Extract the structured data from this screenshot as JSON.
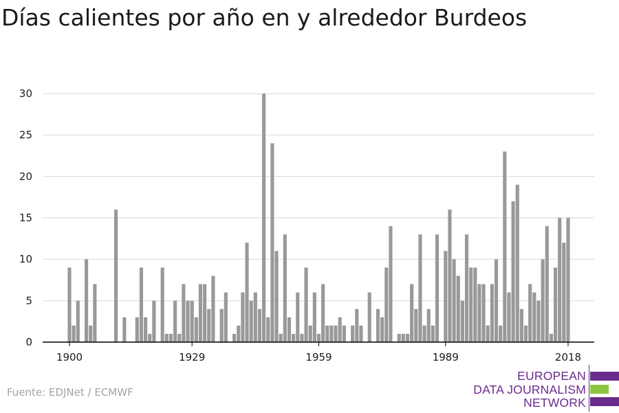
{
  "title": "Días calientes por año en y alrededor Burdeos",
  "source": "Fuente: EDJNet / ECMWF",
  "logo": {
    "lines": [
      "EUROPEAN",
      "DATA JOURNALISM",
      "NETWORK"
    ],
    "colors": {
      "primary": "#6a2c8c",
      "accent": "#8cc63f"
    }
  },
  "colors": {
    "bar": "#999999",
    "grid": "#d9d9d9",
    "axis": "#000000",
    "text": "#1a1a1a"
  },
  "chart_data": {
    "type": "bar",
    "title": "Días calientes por año en y alrededor Burdeos",
    "xlabel": "",
    "ylabel": "",
    "x_start": 1900,
    "x_end": 2018,
    "xlim": [
      1900,
      2018
    ],
    "ylim": [
      0,
      30
    ],
    "yticks": [
      0,
      5,
      10,
      15,
      20,
      25,
      30
    ],
    "xticks": [
      1900,
      1929,
      1959,
      1989,
      2018
    ],
    "grid": true,
    "values": [
      9,
      2,
      5,
      0,
      10,
      2,
      7,
      0,
      0,
      0,
      0,
      16,
      0,
      3,
      0,
      0,
      3,
      9,
      3,
      1,
      5,
      0,
      9,
      1,
      1,
      5,
      1,
      7,
      5,
      5,
      3,
      7,
      7,
      4,
      8,
      0,
      4,
      6,
      0,
      1,
      2,
      6,
      12,
      5,
      6,
      4,
      30,
      3,
      24,
      11,
      1,
      13,
      3,
      1,
      6,
      1,
      9,
      2,
      6,
      1,
      7,
      2,
      2,
      2,
      3,
      2,
      0,
      2,
      4,
      2,
      0,
      6,
      0,
      4,
      3,
      9,
      14,
      0,
      1,
      1,
      1,
      7,
      4,
      13,
      2,
      4,
      2,
      13,
      0,
      11,
      16,
      10,
      8,
      5,
      13,
      9,
      9,
      7,
      7,
      2,
      7,
      10,
      2,
      23,
      6,
      17,
      19,
      4,
      2,
      7,
      6,
      5,
      10,
      14,
      1,
      9,
      15,
      12,
      15
    ]
  }
}
